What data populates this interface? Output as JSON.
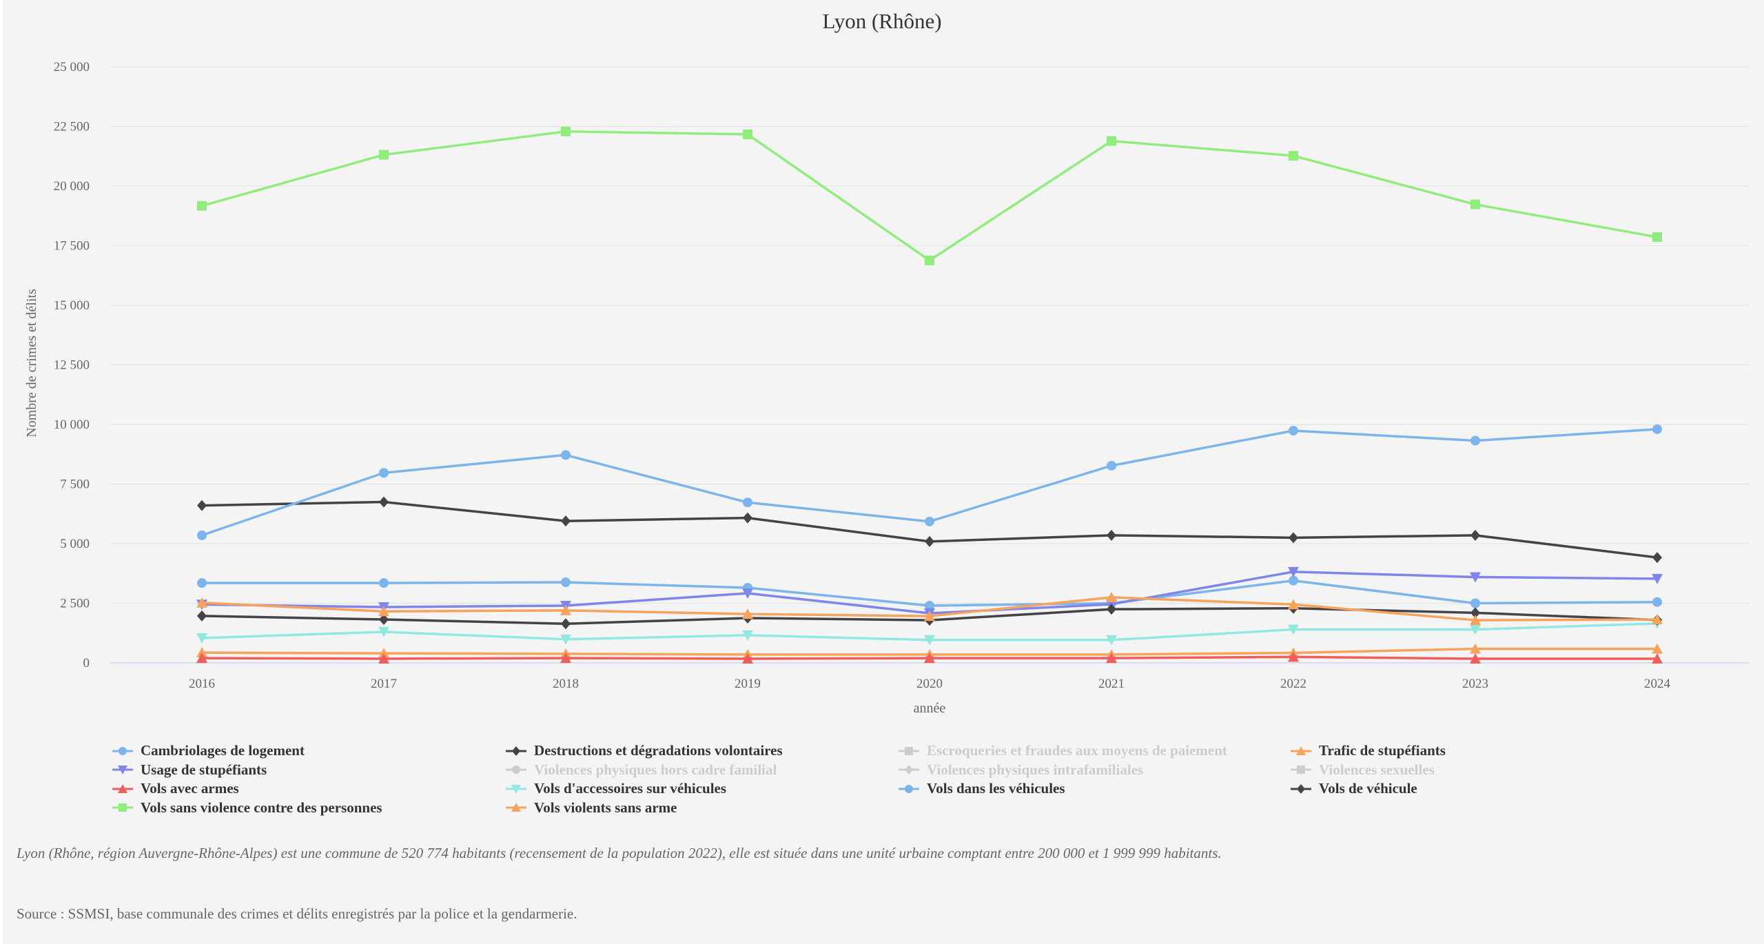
{
  "chart_data": {
    "type": "line",
    "title": "Lyon (Rhône)",
    "xlabel": "année",
    "ylabel": "Nombre de crimes et délits",
    "ylim": [
      0,
      25000
    ],
    "y_ticks": [
      0,
      2500,
      5000,
      7500,
      10000,
      12500,
      15000,
      17500,
      20000,
      22500,
      25000
    ],
    "y_tick_labels": [
      "0",
      "2 500",
      "5 000",
      "7 500",
      "10 000",
      "12 500",
      "15 000",
      "17 500",
      "20 000",
      "22 500",
      "25 000"
    ],
    "categories": [
      "2016",
      "2017",
      "2018",
      "2019",
      "2020",
      "2021",
      "2022",
      "2023",
      "2024"
    ],
    "grid": true,
    "legend_position": "bottom",
    "series": [
      {
        "name": "Cambriolages de logement",
        "color": "#7cb5ec",
        "marker": "circle",
        "visible": true,
        "values": [
          3350,
          3350,
          3380,
          3150,
          2400,
          2500,
          3450,
          2500,
          2550
        ]
      },
      {
        "name": "Destructions et dégradations volontaires",
        "color": "#434348",
        "marker": "diamond",
        "visible": true,
        "values": [
          6600,
          6750,
          5950,
          6080,
          5090,
          5350,
          5250,
          5350,
          4420
        ]
      },
      {
        "name": "Escroqueries et fraudes aux moyens de paiement",
        "color": "#cccccc",
        "marker": "square",
        "visible": false,
        "values": []
      },
      {
        "name": "Trafic de stupéfiants",
        "color": "#f7a35c",
        "marker": "triangle",
        "visible": true,
        "values": [
          430,
          400,
          380,
          350,
          350,
          350,
          420,
          590,
          590
        ]
      },
      {
        "name": "Usage de stupéfiants",
        "color": "#8085e9",
        "marker": "triangle-down",
        "visible": true,
        "values": [
          2450,
          2340,
          2400,
          2920,
          2080,
          2460,
          3820,
          3600,
          3530
        ]
      },
      {
        "name": "Violences physiques hors cadre familial",
        "color": "#cccccc",
        "marker": "circle",
        "visible": false,
        "values": []
      },
      {
        "name": "Violences physiques intrafamiliales",
        "color": "#cccccc",
        "marker": "diamond",
        "visible": false,
        "values": []
      },
      {
        "name": "Violences sexuelles",
        "color": "#cccccc",
        "marker": "square",
        "visible": false,
        "values": []
      },
      {
        "name": "Vols avec armes",
        "color": "#f15c5c",
        "marker": "triangle",
        "visible": true,
        "values": [
          200,
          175,
          200,
          175,
          200,
          200,
          250,
          175,
          175
        ]
      },
      {
        "name": "Vols d'accessoires sur véhicules",
        "color": "#91e8e1",
        "marker": "triangle-down",
        "visible": true,
        "values": [
          1040,
          1300,
          990,
          1160,
          960,
          960,
          1400,
          1400,
          1650
        ]
      },
      {
        "name": "Vols dans les véhicules",
        "color": "#7cb5ec",
        "marker": "circle",
        "visible": true,
        "values": [
          5350,
          7970,
          8720,
          6730,
          5930,
          8270,
          9740,
          9320,
          9800
        ]
      },
      {
        "name": "Vols de véhicule",
        "color": "#434348",
        "marker": "diamond",
        "visible": true,
        "values": [
          1970,
          1820,
          1640,
          1880,
          1790,
          2250,
          2290,
          2100,
          1800
        ]
      },
      {
        "name": "Vols sans violence contre des personnes",
        "color": "#90ed7d",
        "marker": "square",
        "visible": true,
        "values": [
          19170,
          21310,
          22290,
          22170,
          16880,
          21890,
          21270,
          19230,
          17860
        ]
      },
      {
        "name": "Vols violents sans arme",
        "color": "#f7a35c",
        "marker": "triangle",
        "visible": true,
        "values": [
          2520,
          2160,
          2200,
          2050,
          1960,
          2750,
          2450,
          1790,
          1820
        ]
      }
    ]
  },
  "footer": {
    "note": "Lyon (Rhône, région Auvergne-Rhône-Alpes) est une commune de 520 774 habitants (recensement de la population 2022), elle est située dans une unité urbaine comptant entre 200 000 et 1 999 999 habitants.",
    "source": "Source : SSMSI, base communale des crimes et délits enregistrés par la police et la gendarmerie."
  }
}
